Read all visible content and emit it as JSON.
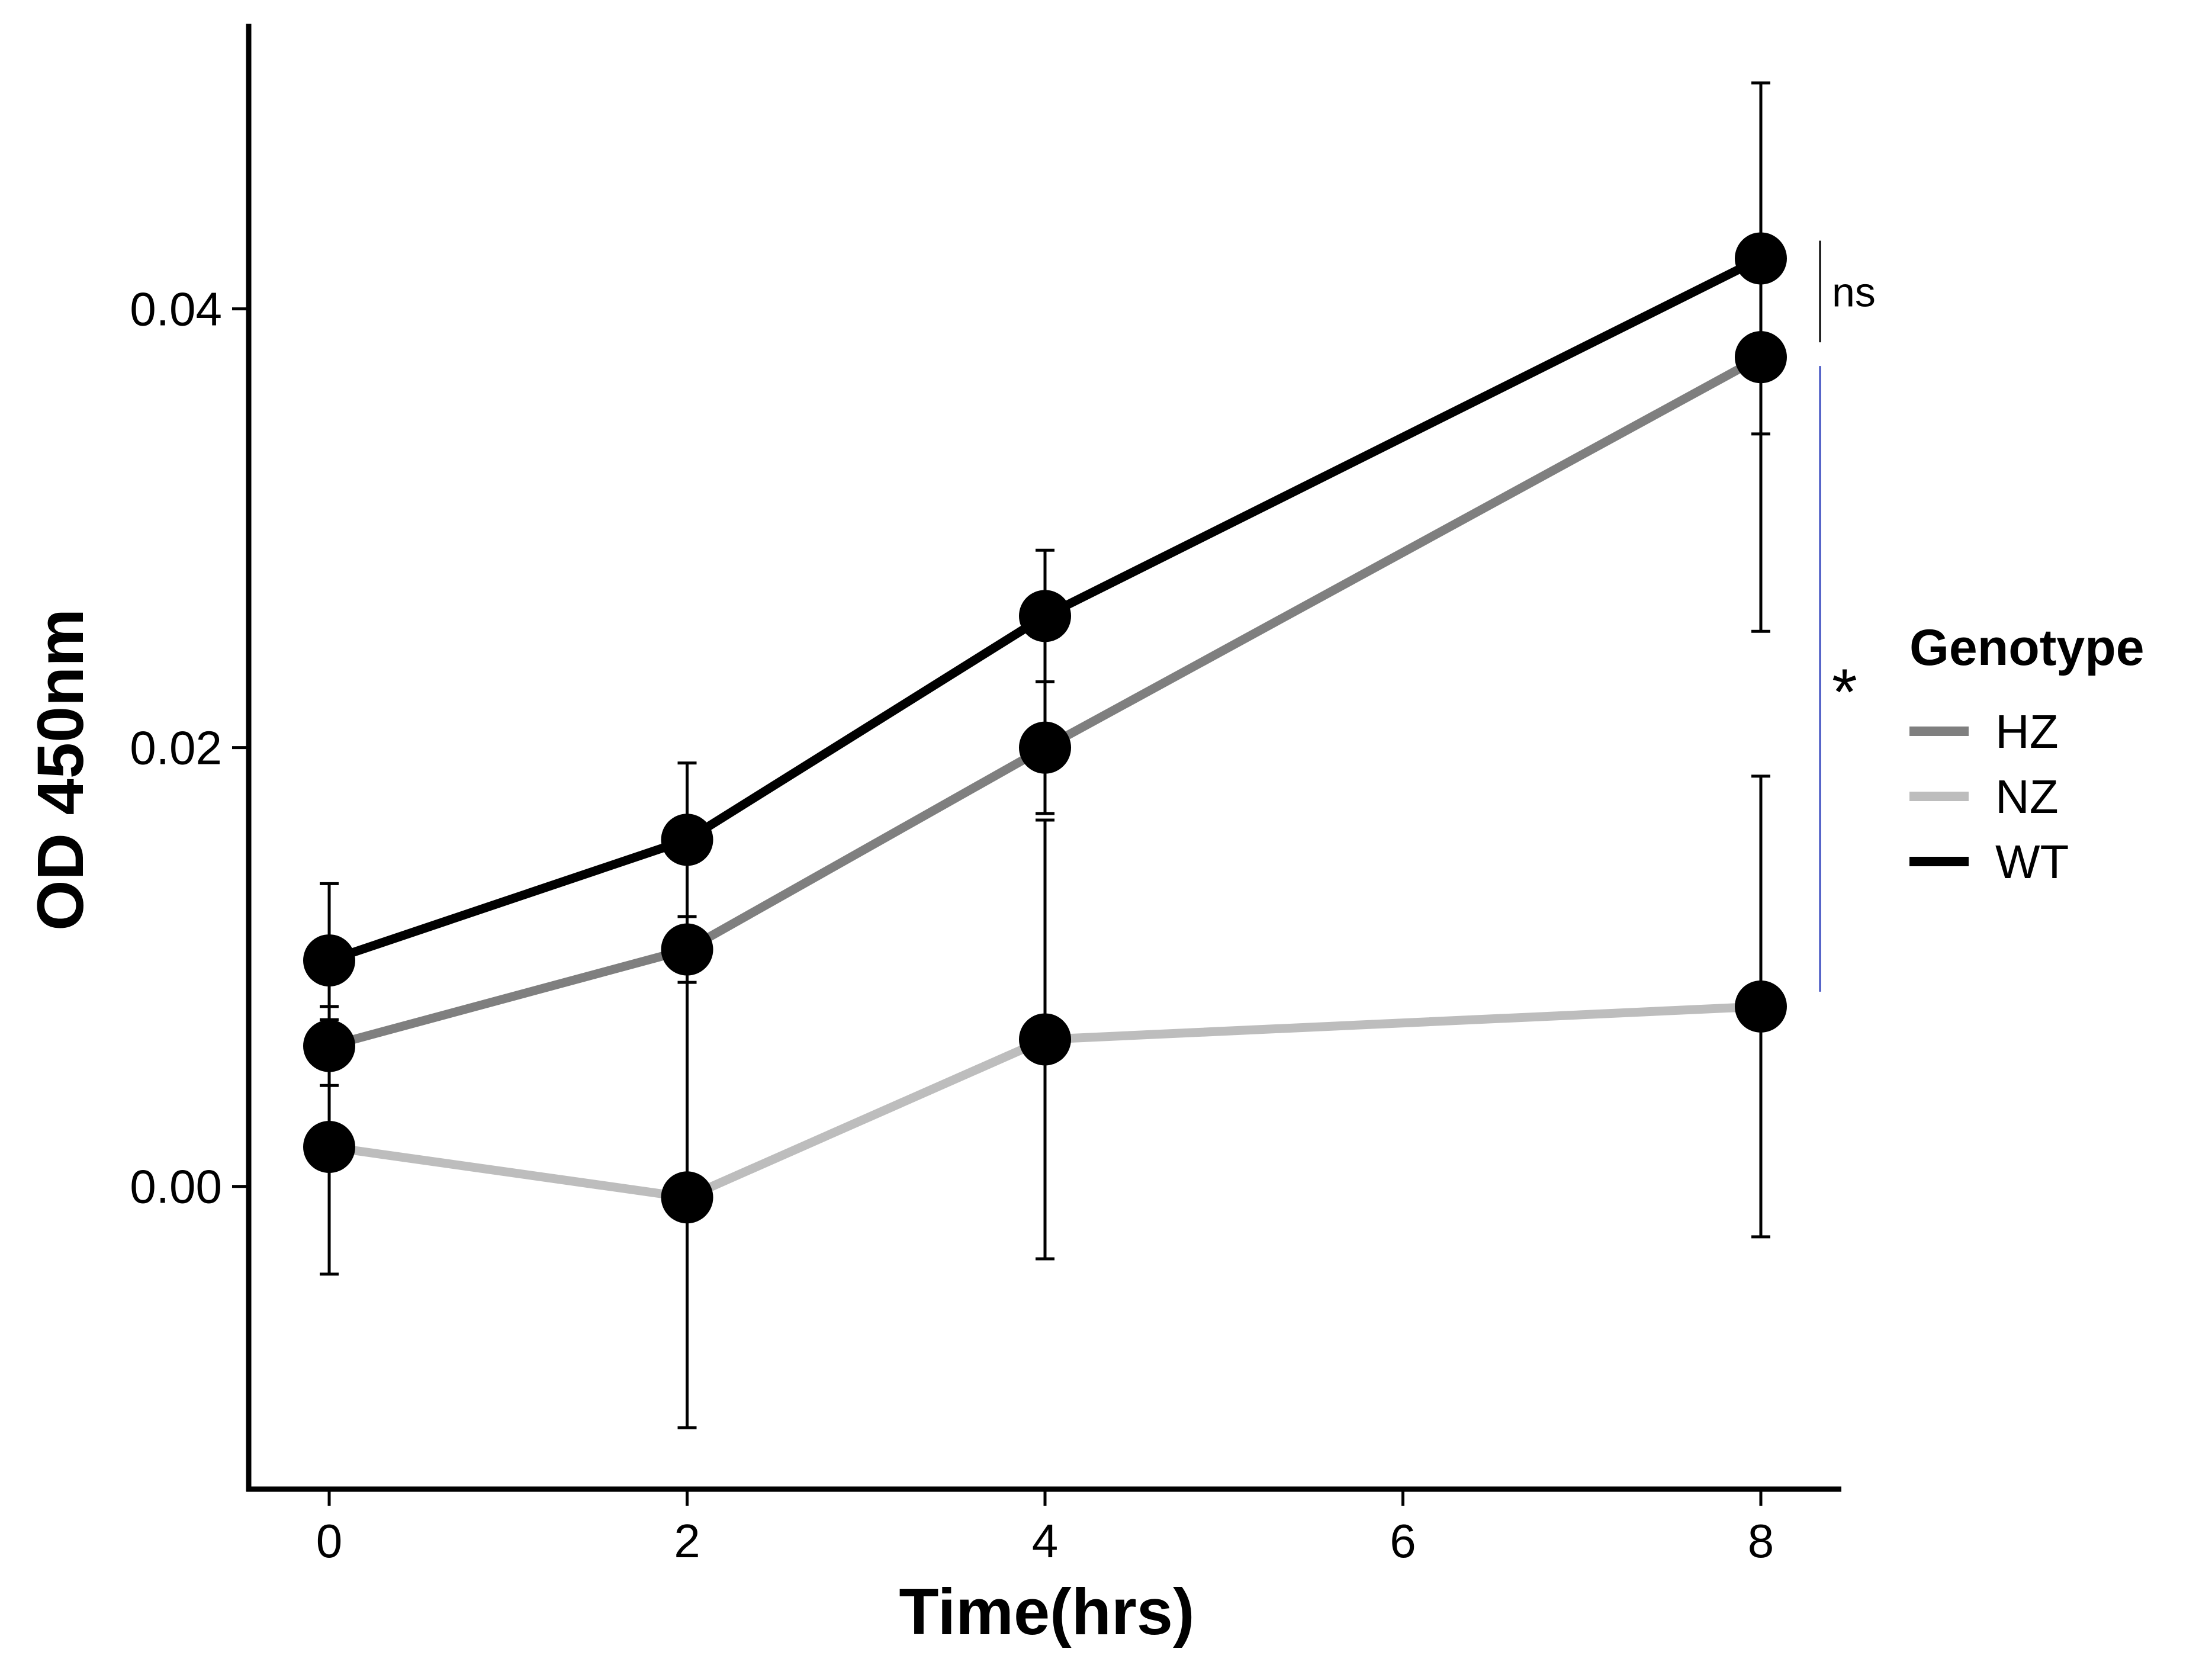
{
  "chart_data": {
    "type": "line",
    "title": "",
    "xlabel": "Time(hrs)",
    "ylabel": "OD 450nm",
    "x": [
      0,
      2,
      4,
      8
    ],
    "xlim": [
      -0.45,
      8.45
    ],
    "ylim": [
      -0.0138,
      0.053
    ],
    "xticks": [
      0,
      2,
      4,
      6,
      8
    ],
    "xtick_labels": [
      "0",
      "2",
      "4",
      "6",
      "8"
    ],
    "yticks": [
      0.0,
      0.02,
      0.04
    ],
    "ytick_labels": [
      "0.00",
      "0.02",
      "0.04"
    ],
    "grid": false,
    "legend": {
      "title": "Genotype",
      "position": "right",
      "entries": [
        {
          "label": "HZ",
          "color": "#7f7f7f"
        },
        {
          "label": "NZ",
          "color": "#bdbdbd"
        },
        {
          "label": "WT",
          "color": "#000000"
        }
      ]
    },
    "series": [
      {
        "name": "WT",
        "color": "#000000",
        "values": [
          0.0103,
          0.0158,
          0.026,
          0.0423
        ],
        "err": [
          0.0035,
          0.0035,
          0.003,
          0.008
        ]
      },
      {
        "name": "HZ",
        "color": "#7f7f7f",
        "values": [
          0.0064,
          0.0108,
          0.02,
          0.0378
        ],
        "err": [
          0.0018,
          0.0015,
          0.003,
          0.0125
        ]
      },
      {
        "name": "NZ",
        "color": "#bdbdbd",
        "values": [
          0.0018,
          -0.0005,
          0.0067,
          0.0082
        ],
        "err": [
          0.0058,
          0.0105,
          0.01,
          0.0105
        ]
      }
    ],
    "annotations": [
      {
        "text": "ns",
        "between": [
          "WT",
          "HZ"
        ],
        "at_x": 8,
        "line_color": "#000000"
      },
      {
        "text": "*",
        "between": [
          "HZ",
          "NZ"
        ],
        "at_x": 8,
        "line_color": "#3b4cc0"
      }
    ]
  }
}
